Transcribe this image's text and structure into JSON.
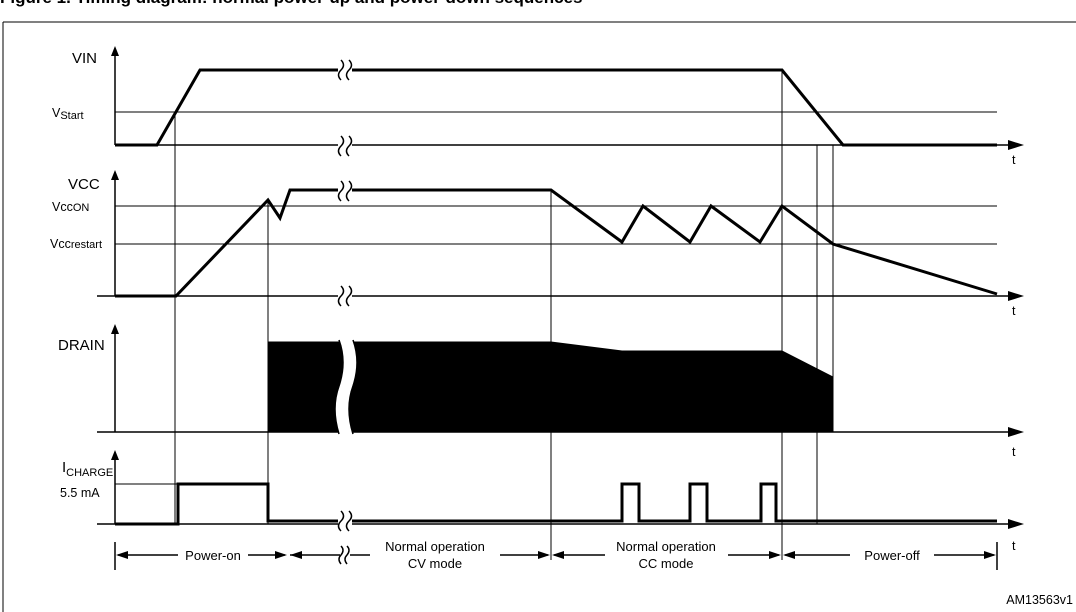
{
  "title": "Figure 1. Timing diagram: normal power-up and power-down sequences",
  "signals": {
    "vin": "VIN",
    "vcc": "VCC",
    "drain": "DRAIN",
    "icharge_main": "I",
    "icharge_sub": "CHARGE"
  },
  "levels": {
    "vstart_main": "V",
    "vstart_sub": "Start",
    "vccon_main": "Vcc",
    "vccon_sub": "ON",
    "vccrestart_main": "Vcc",
    "vccrestart_sub": "restart",
    "icharge_value": "5.5 mA"
  },
  "axis_t": "t",
  "phases": {
    "power_on": "Power-on",
    "normal_cv_1": "Normal operation",
    "normal_cv_2": "CV mode",
    "normal_cc_1": "Normal operation",
    "normal_cc_2": "CC mode",
    "power_off": "Power-off"
  },
  "figure_id": "AM13563v1"
}
